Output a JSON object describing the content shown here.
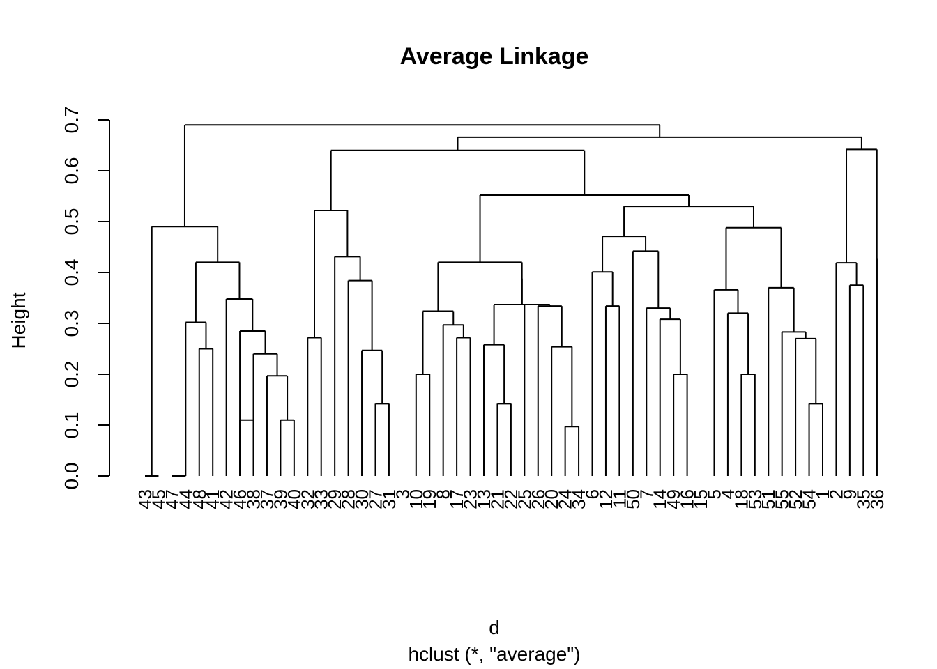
{
  "chart_data": {
    "type": "dendrogram",
    "title": "Average Linkage",
    "ylabel": "Height",
    "xlabel": "d",
    "sublabel": "hclust (*, \"average\")",
    "ylim": [
      0,
      0.7
    ],
    "yticks": [
      "0.0",
      "0.1",
      "0.2",
      "0.3",
      "0.4",
      "0.5",
      "0.6",
      "0.7"
    ],
    "leaves": [
      "43",
      "45",
      "47",
      "44",
      "48",
      "41",
      "42",
      "46",
      "38",
      "37",
      "39",
      "40",
      "32",
      "33",
      "29",
      "28",
      "30",
      "27",
      "31",
      "3",
      "10",
      "19",
      "8",
      "17",
      "23",
      "13",
      "21",
      "22",
      "25",
      "26",
      "20",
      "24",
      "34",
      "6",
      "12",
      "11",
      "50",
      "7",
      "14",
      "49",
      "16",
      "15",
      "5",
      "4",
      "18",
      "53",
      "51",
      "55",
      "52",
      "54",
      "1",
      "2",
      "9",
      "35",
      "36"
    ],
    "merges": [
      [
        "43",
        "45",
        0.0
      ],
      [
        "48",
        "41",
        0.25
      ],
      [
        "44",
        "m2",
        0.302
      ],
      [
        "46",
        "38",
        0.11
      ],
      [
        "39",
        "40",
        0.11
      ],
      [
        "37",
        "m5",
        0.197
      ],
      [
        "m6",
        "m6b",
        0.0
      ],
      [
        "m4",
        "m6",
        0.24
      ],
      [
        "m8",
        "m8b",
        0.0
      ],
      [
        "42",
        "m9",
        0.348
      ],
      [
        "m3",
        "m10",
        0.42
      ],
      [
        "m1",
        "m11",
        0.49
      ],
      [
        "33",
        "29",
        0.272
      ],
      [
        "27",
        "31",
        0.142
      ],
      [
        "30",
        "m14",
        0.247
      ],
      [
        "28",
        "m15",
        0.384
      ],
      [
        "m16",
        "m16b",
        0.0
      ],
      [
        "m13",
        "m17",
        0.522
      ],
      [
        "10",
        "19",
        0.2
      ],
      [
        "17",
        "23",
        0.272
      ],
      [
        "8",
        "m20",
        0.297
      ],
      [
        "m19",
        "m21",
        0.324
      ],
      [
        "21",
        "22",
        0.142
      ],
      [
        "13",
        "m23",
        0.258
      ],
      [
        "24",
        "34",
        0.097
      ],
      [
        "20",
        "m25",
        0.254
      ],
      [
        "26",
        "m26",
        0.334
      ],
      [
        "m24",
        "m27",
        0.337
      ],
      [
        "m28",
        "m28b",
        0.0
      ],
      [
        "m22",
        "m29",
        0.42
      ],
      [
        "12",
        "11",
        0.334
      ],
      [
        "6",
        "m31",
        0.401
      ],
      [
        "49",
        "16",
        0.2
      ],
      [
        "14",
        "m33",
        0.308
      ],
      [
        "7",
        "m34",
        0.33
      ],
      [
        "50",
        "m35",
        0.442
      ],
      [
        "m32",
        "m36",
        0.471
      ],
      [
        "18",
        "53",
        0.2
      ],
      [
        "4",
        "m38",
        0.32
      ],
      [
        "5",
        "m39",
        0.366
      ],
      [
        "54",
        "1",
        0.142
      ],
      [
        "52",
        "m41",
        0.27
      ],
      [
        "55",
        "m42",
        0.283
      ],
      [
        "51",
        "m43",
        0.37
      ],
      [
        "m40",
        "m44",
        0.488
      ],
      [
        "m37",
        "m45",
        0.53
      ],
      [
        "m30",
        "m46",
        0.552
      ],
      [
        "m18",
        "m47",
        0.64
      ],
      [
        "35",
        "36",
        0.0
      ],
      [
        "9",
        "m49",
        0.375
      ],
      [
        "2",
        "m50",
        0.419
      ],
      [
        "m51",
        "36",
        0.428
      ],
      [
        "m52",
        "m52b",
        0.0
      ],
      [
        "m48",
        "m53",
        0.666
      ],
      [
        "m12",
        "m54",
        0.69
      ]
    ]
  }
}
